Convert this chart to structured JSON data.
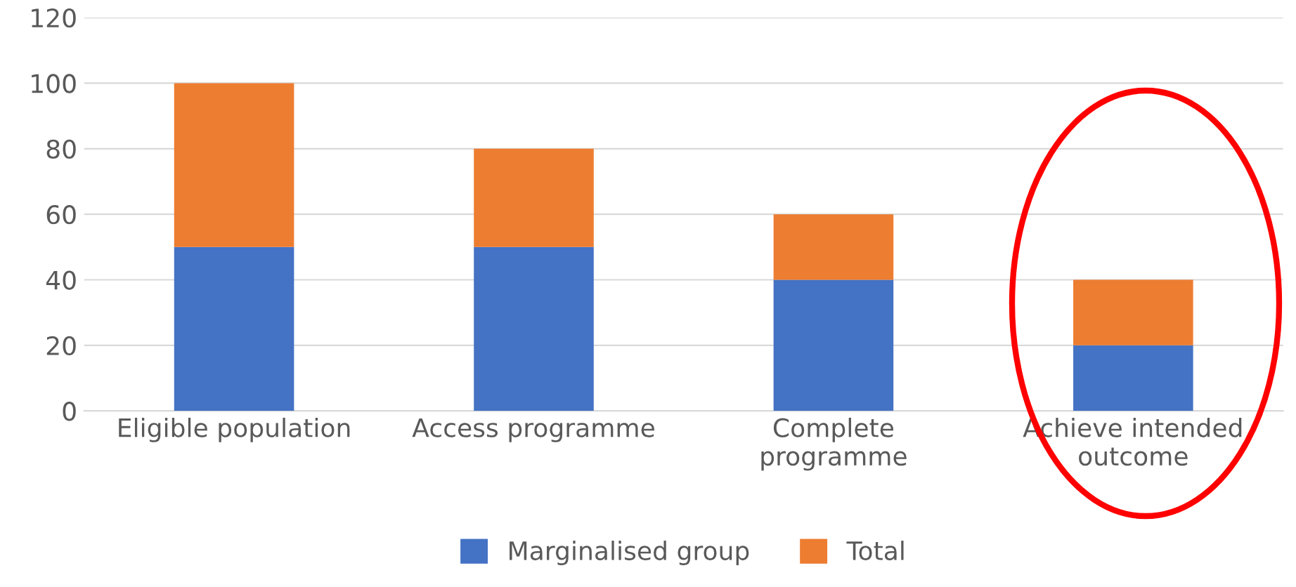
{
  "chart_data": {
    "type": "bar",
    "stacked": true,
    "categories": [
      "Eligible population",
      "Access programme",
      "Complete\nprogramme",
      "Achieve intended\noutcome"
    ],
    "series": [
      {
        "name": "Marginalised group",
        "color": "#4472c4",
        "values": [
          50,
          50,
          40,
          20
        ]
      },
      {
        "name": "Total",
        "color": "#ed7d31",
        "values": [
          50,
          30,
          20,
          20
        ]
      }
    ],
    "ylim": [
      0,
      120
    ],
    "yticks": [
      0,
      20,
      40,
      60,
      80,
      100,
      120
    ],
    "grid": "y",
    "legend": "bottom"
  }
}
